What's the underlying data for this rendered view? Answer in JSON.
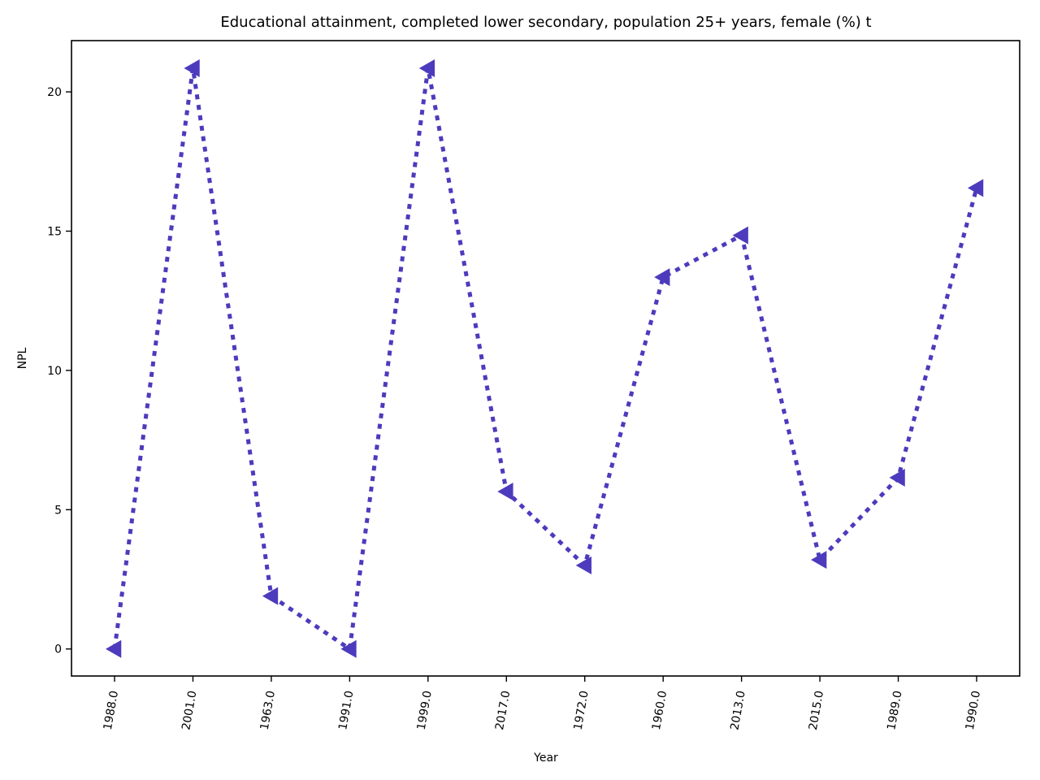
{
  "chart_data": {
    "type": "line",
    "title": "Educational attainment, completed lower secondary, population 25+ years, female (%) t",
    "xlabel": "Year",
    "ylabel": "NPL",
    "categories": [
      "1988.0",
      "2001.0",
      "1963.0",
      "1991.0",
      "1999.0",
      "2017.0",
      "1972.0",
      "1960.0",
      "2013.0",
      "2015.0",
      "1989.0",
      "1990.0"
    ],
    "series": [
      {
        "values": [
          0.0,
          20.85,
          1.9,
          0.0,
          20.85,
          5.65,
          3.0,
          13.35,
          14.85,
          3.2,
          6.15,
          16.55
        ],
        "color": "#4c3bbd",
        "marker": "triangle-left",
        "line_style": "dotted"
      }
    ],
    "yticks": [
      0,
      5,
      10,
      15,
      20
    ],
    "ylim": [
      -0.97,
      21.84
    ],
    "grid": false,
    "legend": "none"
  }
}
